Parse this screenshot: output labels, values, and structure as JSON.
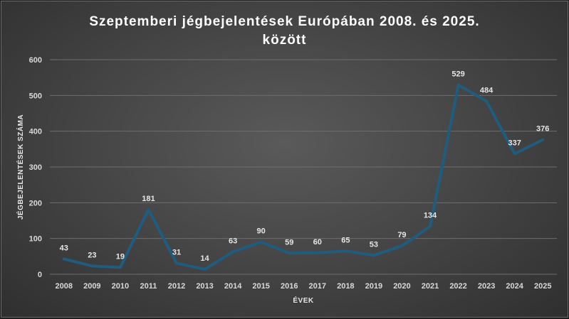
{
  "chart_data": {
    "type": "line",
    "title_line1": "Szeptemberi jégbejelentések Európában 2008. és 2025.",
    "title_line2": "között",
    "xlabel": "ÉVEK",
    "ylabel": "JÉGBEJELENTÉSEK SZÁMA",
    "categories": [
      "2008",
      "2009",
      "2010",
      "2011",
      "2012",
      "2013",
      "2014",
      "2015",
      "2016",
      "2017",
      "2018",
      "2019",
      "2020",
      "2021",
      "2022",
      "2023",
      "2024",
      "2025"
    ],
    "values": [
      43,
      23,
      19,
      181,
      31,
      14,
      63,
      90,
      59,
      60,
      65,
      53,
      79,
      134,
      529,
      484,
      337,
      376
    ],
    "ylim": [
      0,
      600
    ],
    "yticks": [
      0,
      100,
      200,
      300,
      400,
      500,
      600
    ],
    "grid": true,
    "data_labels": true,
    "line_color": "#1f5c7e"
  }
}
